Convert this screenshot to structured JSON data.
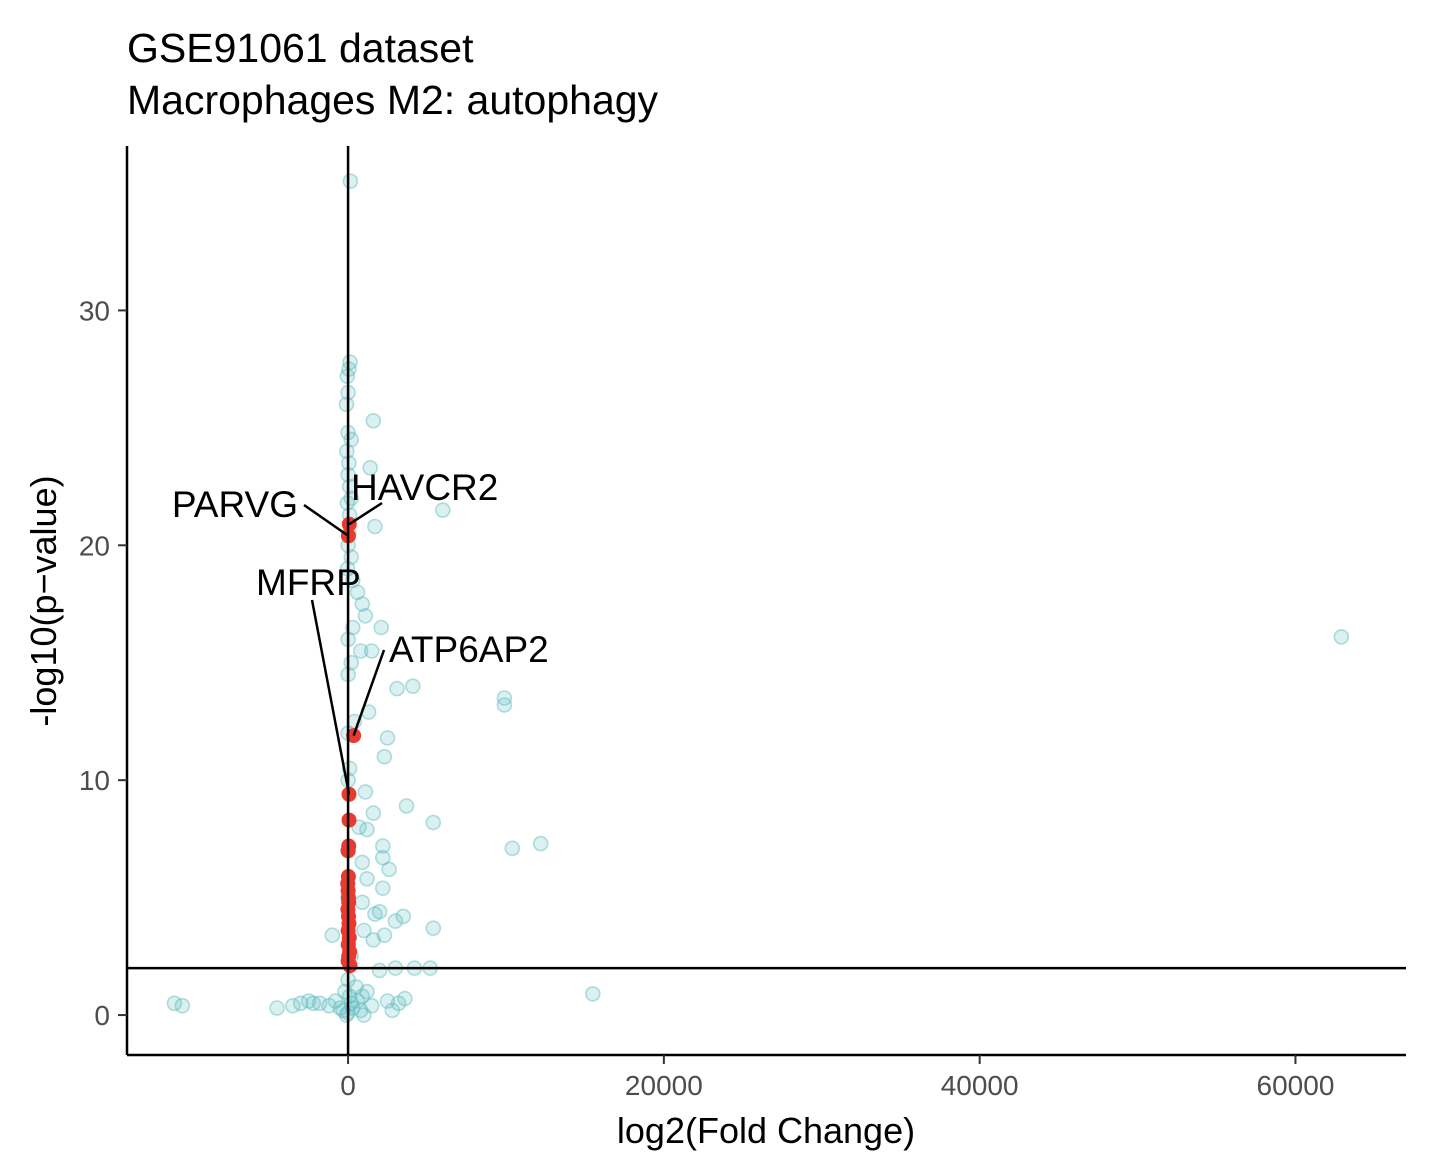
{
  "chart_data": {
    "type": "scatter",
    "title": "GSE91061 dataset",
    "subtitle": "Macrophages M2: autophagy",
    "xlabel": "log2(Fold Change)",
    "ylabel": "-log10(p−value)",
    "xlim": [
      -14000,
      67000
    ],
    "ylim": [
      -1.7,
      37
    ],
    "xticks": [
      0,
      20000,
      40000,
      60000
    ],
    "yticks": [
      0,
      10,
      20,
      30
    ],
    "reference_lines": {
      "vertical_x": 0,
      "horizontal_y": 2
    },
    "colors": {
      "background_points": "#5ab9bd",
      "highlight_points": "#e83a2e",
      "lines": "#000000"
    },
    "grid": false,
    "legend": "none",
    "series": [
      {
        "role": "all-genes",
        "points": [
          [
            150,
            35.5
          ],
          [
            120,
            27.8
          ],
          [
            50,
            27.5
          ],
          [
            -50,
            27.2
          ],
          [
            0,
            26.5
          ],
          [
            -100,
            26.0
          ],
          [
            1600,
            25.3
          ],
          [
            0,
            24.8
          ],
          [
            200,
            24.5
          ],
          [
            -80,
            24.0
          ],
          [
            50,
            23.5
          ],
          [
            1400,
            23.3
          ],
          [
            0,
            23.0
          ],
          [
            100,
            22.5
          ],
          [
            200,
            22.0
          ],
          [
            -40,
            21.8
          ],
          [
            6000,
            21.5
          ],
          [
            100,
            21.3
          ],
          [
            1700,
            20.8
          ],
          [
            50,
            20.5
          ],
          [
            0,
            20.0
          ],
          [
            200,
            19.5
          ],
          [
            -30,
            19.0
          ],
          [
            300,
            18.5
          ],
          [
            600,
            18.0
          ],
          [
            900,
            17.5
          ],
          [
            1100,
            17.0
          ],
          [
            2100,
            16.5
          ],
          [
            300,
            16.5
          ],
          [
            0,
            16.0
          ],
          [
            62900,
            16.1
          ],
          [
            800,
            15.5
          ],
          [
            1500,
            15.5
          ],
          [
            200,
            15.0
          ],
          [
            0,
            14.5
          ],
          [
            3100,
            13.9
          ],
          [
            4100,
            14.0
          ],
          [
            9900,
            13.5
          ],
          [
            9900,
            13.2
          ],
          [
            1300,
            12.9
          ],
          [
            400,
            12.5
          ],
          [
            0,
            12.0
          ],
          [
            2500,
            11.8
          ],
          [
            2300,
            11.0
          ],
          [
            100,
            10.5
          ],
          [
            0,
            10.0
          ],
          [
            1100,
            9.5
          ],
          [
            3700,
            8.9
          ],
          [
            1600,
            8.6
          ],
          [
            5400,
            8.2
          ],
          [
            700,
            8.0
          ],
          [
            1200,
            7.9
          ],
          [
            12200,
            7.3
          ],
          [
            10400,
            7.1
          ],
          [
            2200,
            7.2
          ],
          [
            0,
            7.0
          ],
          [
            2200,
            6.7
          ],
          [
            900,
            6.5
          ],
          [
            2600,
            6.2
          ],
          [
            1200,
            5.8
          ],
          [
            2200,
            5.4
          ],
          [
            0,
            5.0
          ],
          [
            900,
            4.8
          ],
          [
            2000,
            4.4
          ],
          [
            1700,
            4.3
          ],
          [
            3500,
            4.2
          ],
          [
            3000,
            4.0
          ],
          [
            5400,
            3.7
          ],
          [
            1000,
            3.6
          ],
          [
            2300,
            3.4
          ],
          [
            -1000,
            3.4
          ],
          [
            1600,
            3.2
          ],
          [
            0,
            3.0
          ],
          [
            200,
            2.5
          ],
          [
            3000,
            2.0
          ],
          [
            4200,
            2.0
          ],
          [
            5200,
            2.0
          ],
          [
            2000,
            1.9
          ],
          [
            15500,
            0.9
          ],
          [
            3600,
            0.7
          ],
          [
            2500,
            0.6
          ],
          [
            3200,
            0.5
          ],
          [
            1500,
            0.4
          ],
          [
            2800,
            0.2
          ],
          [
            -11000,
            0.5
          ],
          [
            -10500,
            0.4
          ],
          [
            -4500,
            0.3
          ],
          [
            -3500,
            0.4
          ],
          [
            -3000,
            0.5
          ],
          [
            -2500,
            0.6
          ],
          [
            -2200,
            0.5
          ],
          [
            -1800,
            0.5
          ],
          [
            -1200,
            0.4
          ],
          [
            -800,
            0.6
          ],
          [
            -500,
            0.3
          ],
          [
            -300,
            0.2
          ],
          [
            0,
            0.1
          ],
          [
            300,
            0.3
          ],
          [
            600,
            0.6
          ],
          [
            900,
            0.8
          ],
          [
            1200,
            1.0
          ],
          [
            500,
            1.2
          ],
          [
            0,
            1.5
          ],
          [
            -200,
            1.0
          ],
          [
            100,
            0.8
          ],
          [
            800,
            0.2
          ],
          [
            1000,
            0.0
          ],
          [
            -100,
            0.0
          ],
          [
            200,
            0.5
          ]
        ]
      },
      {
        "role": "autophagy-genes",
        "points": [
          [
            80,
            20.9
          ],
          [
            20,
            20.4
          ],
          [
            350,
            11.9
          ],
          [
            60,
            9.4
          ],
          [
            60,
            8.3
          ],
          [
            40,
            7.2
          ],
          [
            0,
            7.0
          ],
          [
            20,
            5.9
          ],
          [
            -20,
            5.6
          ],
          [
            0,
            5.3
          ],
          [
            20,
            5.0
          ],
          [
            40,
            4.8
          ],
          [
            -10,
            4.5
          ],
          [
            30,
            4.2
          ],
          [
            60,
            3.9
          ],
          [
            0,
            3.6
          ],
          [
            80,
            3.3
          ],
          [
            20,
            3.0
          ],
          [
            100,
            2.7
          ],
          [
            40,
            2.5
          ],
          [
            0,
            2.3
          ],
          [
            120,
            2.1
          ]
        ]
      }
    ],
    "labels": [
      {
        "text": "PARVG",
        "point": [
          20,
          20.4
        ]
      },
      {
        "text": "HAVCR2",
        "point": [
          80,
          20.9
        ]
      },
      {
        "text": "MFRP",
        "point": [
          60,
          9.4
        ]
      },
      {
        "text": "ATP6AP2",
        "point": [
          350,
          11.9
        ]
      }
    ]
  }
}
